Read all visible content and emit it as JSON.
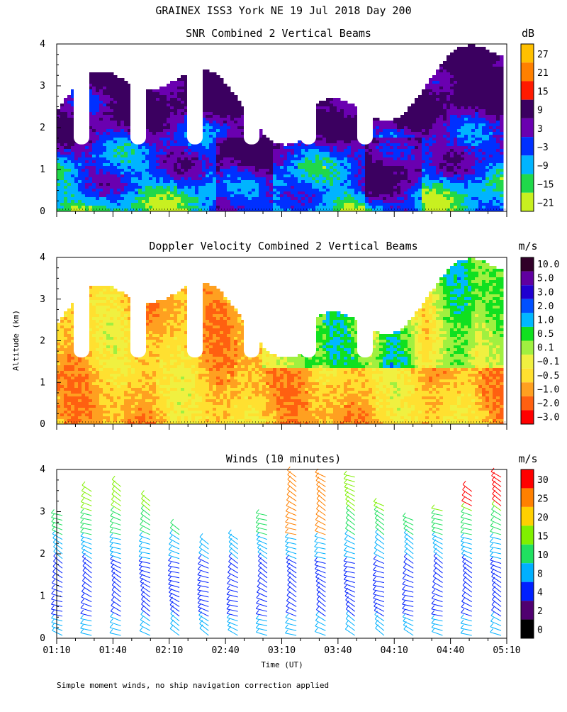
{
  "page": {
    "title": "GRAINEX ISS3 York NE  19 Jul 2018 Day 200",
    "ylabel": "Altitude (km)",
    "xlabel": "Time (UT)",
    "note": "Simple moment winds, no ship navigation correction applied"
  },
  "chart_data": [
    {
      "type": "heatmap",
      "title": "SNR Combined 2 Vertical Beams",
      "units": "dB",
      "xlim": [
        "01:10",
        "05:10"
      ],
      "ylim": [
        0,
        4
      ],
      "yticks": [
        "0",
        "1",
        "2",
        "3",
        "4"
      ],
      "colorbar": {
        "levels": [
          "27",
          "21",
          "15",
          "9",
          "3",
          "−3",
          "−9",
          "−15",
          "−21"
        ],
        "colors": [
          "#ffc000",
          "#ff8000",
          "#ff1a00",
          "#3b0060",
          "#6a00b0",
          "#0030ff",
          "#00b4ff",
          "#20d84a",
          "#c8f020"
        ]
      }
    },
    {
      "type": "heatmap",
      "title": "Doppler Velocity Combined 2 Vertical Beams",
      "units": "m/s",
      "xlim": [
        "01:10",
        "05:10"
      ],
      "ylim": [
        0,
        4
      ],
      "yticks": [
        "0",
        "1",
        "2",
        "3",
        "4"
      ],
      "colorbar": {
        "levels": [
          "10.0",
          "5.0",
          "3.0",
          "2.0",
          "1.0",
          "0.5",
          "0.1",
          "−0.1",
          "−0.5",
          "−1.0",
          "−2.0",
          "−3.0"
        ],
        "colors": [
          "#300028",
          "#6000a0",
          "#2000d0",
          "#0050ff",
          "#00b8ff",
          "#10e020",
          "#a0f040",
          "#f0f040",
          "#ffe030",
          "#ffa020",
          "#ff6010",
          "#ff0000"
        ]
      }
    },
    {
      "type": "scatter",
      "title": "Winds (10 minutes)",
      "units": "m/s",
      "xlim": [
        "01:10",
        "05:10"
      ],
      "ylim": [
        0,
        4
      ],
      "xticks": [
        "01:10",
        "01:40",
        "02:10",
        "02:40",
        "03:10",
        "03:40",
        "04:10",
        "04:40",
        "05:10"
      ],
      "yticks": [
        "0",
        "1",
        "2",
        "3",
        "4"
      ],
      "colorbar": {
        "levels": [
          "30",
          "25",
          "20",
          "15",
          "10",
          "8",
          "4",
          "2",
          "0"
        ],
        "colors": [
          "#ff0000",
          "#ff8000",
          "#ffd000",
          "#80f000",
          "#20e060",
          "#00b0ff",
          "#0020ff",
          "#500070",
          "#000000"
        ]
      }
    }
  ]
}
